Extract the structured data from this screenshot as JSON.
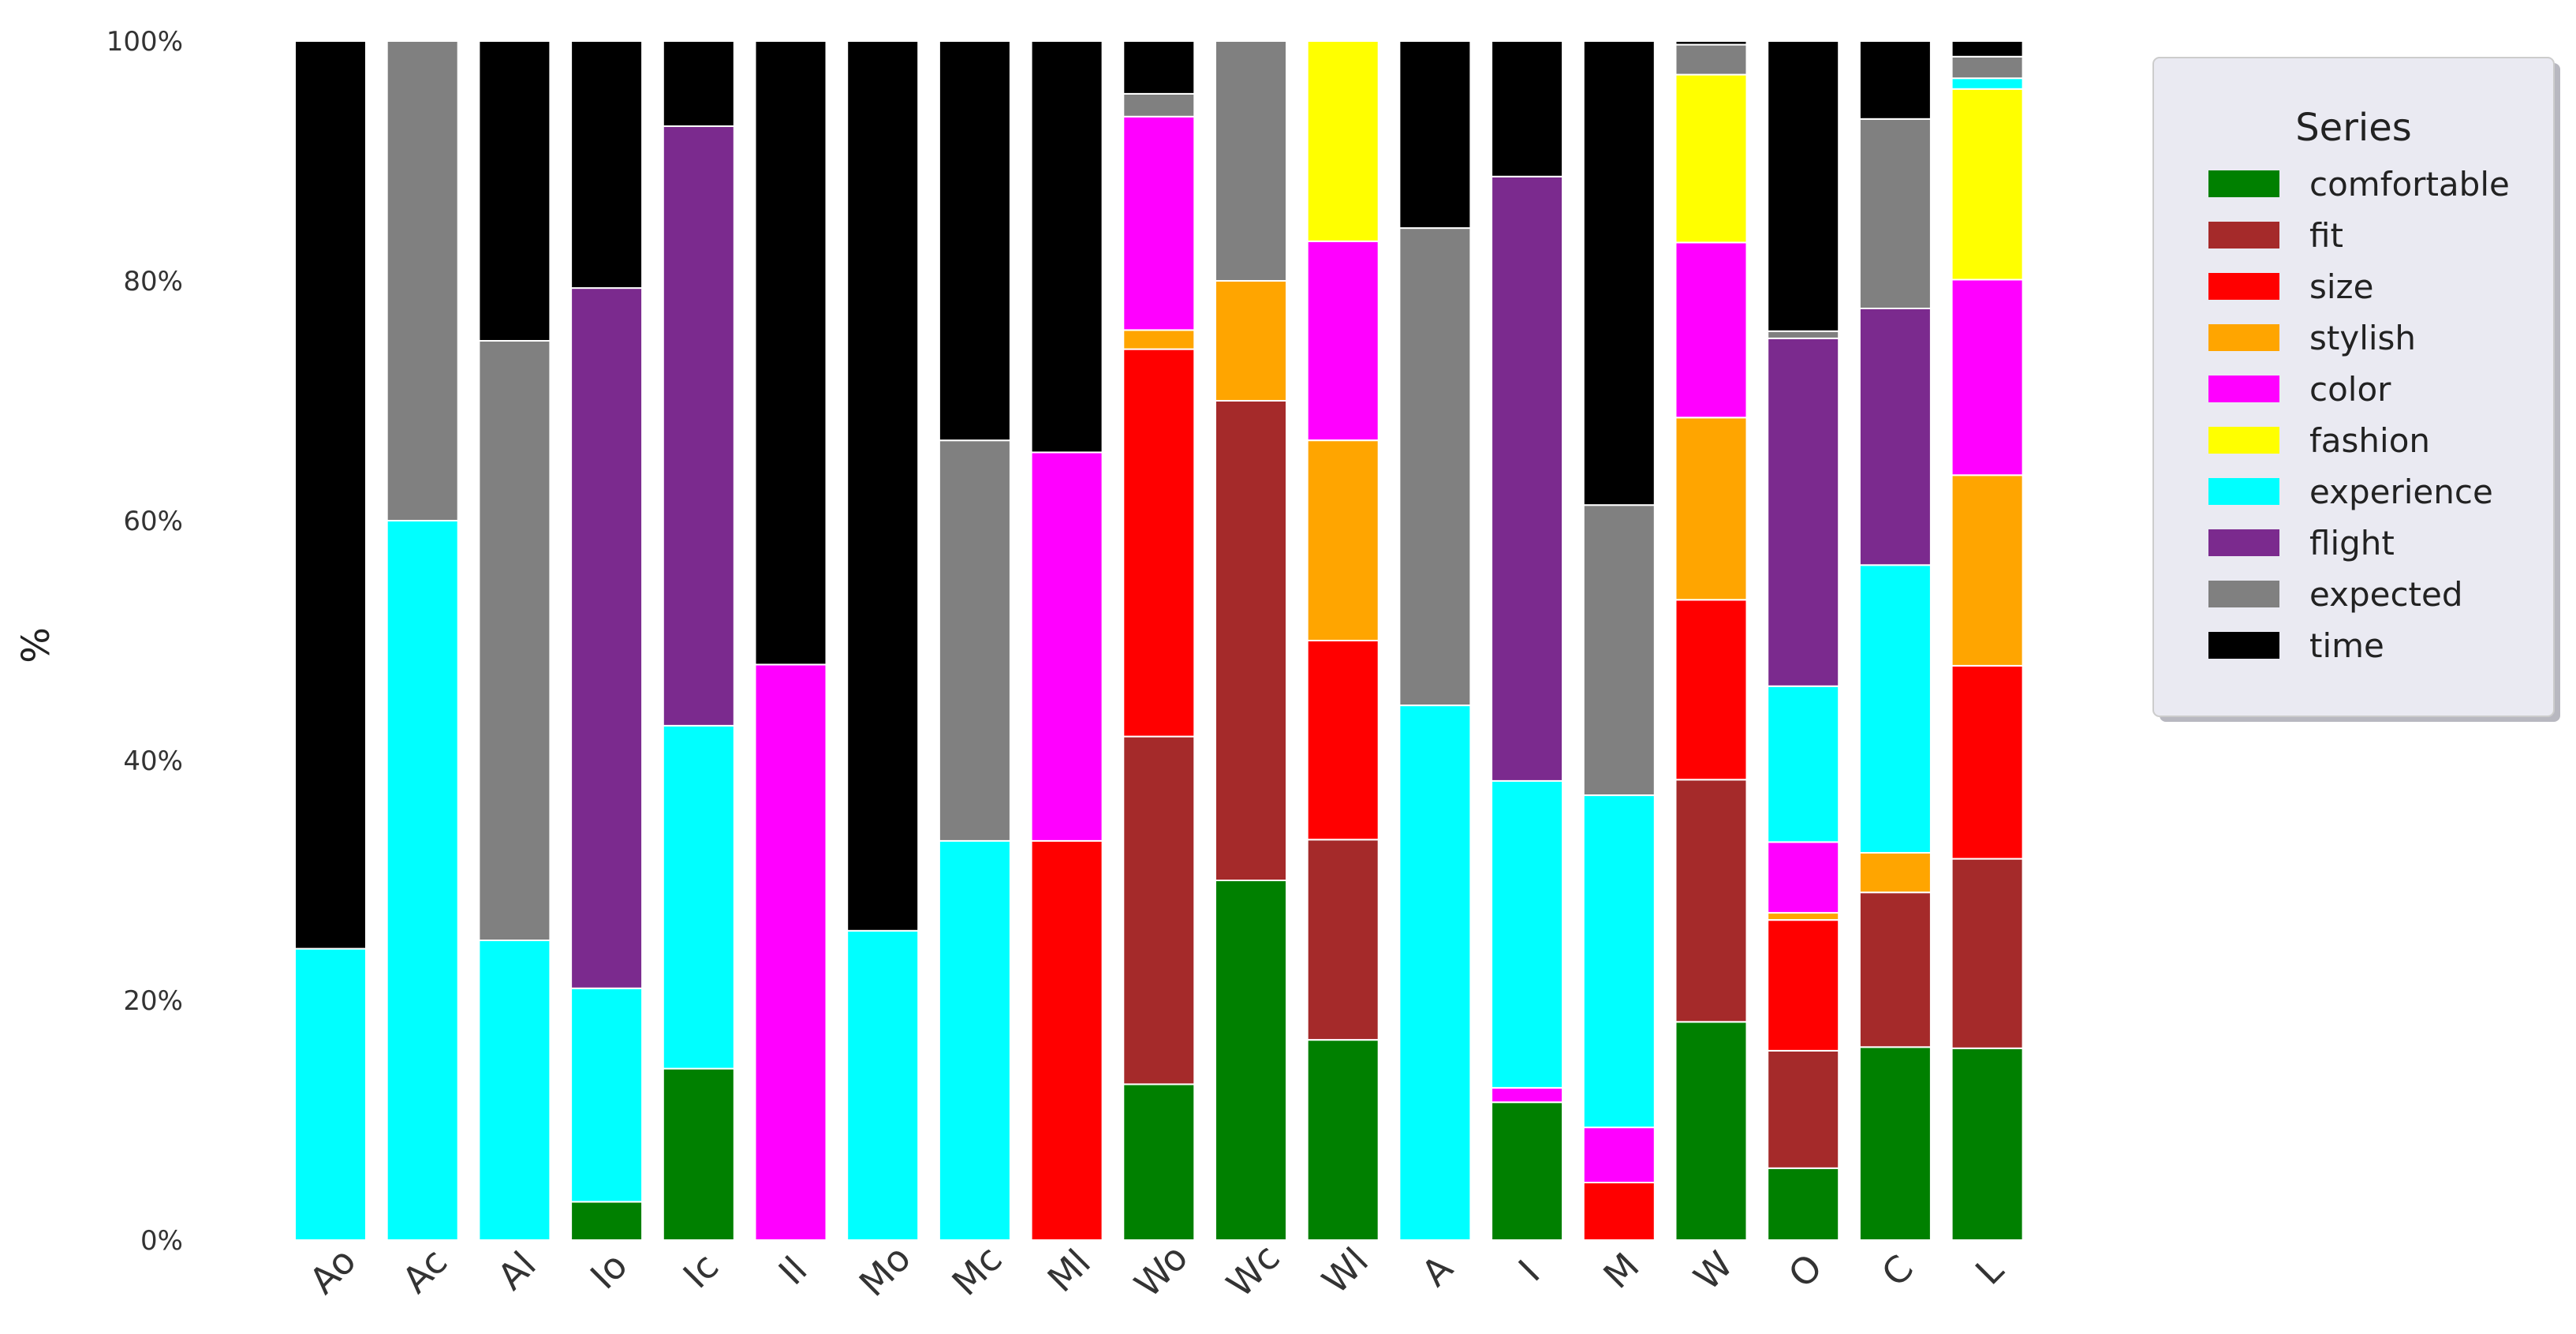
{
  "chart_data": {
    "type": "bar",
    "stacked": true,
    "normalized": true,
    "ylabel": "%",
    "ylim": [
      0,
      100
    ],
    "yticks": [
      "0%",
      "20%",
      "40%",
      "60%",
      "80%",
      "100%"
    ],
    "grid": false,
    "legend": {
      "title": "Series",
      "placement": "right"
    },
    "categories": [
      "Ao",
      "Ac",
      "Al",
      "Io",
      "Ic",
      "Il",
      "Mo",
      "Mc",
      "Ml",
      "Wo",
      "Wc",
      "Wl",
      "A",
      "I",
      "M",
      "W",
      "O",
      "C",
      "L"
    ],
    "series": [
      {
        "name": "comfortable",
        "color": "#008000",
        "values": [
          0,
          0,
          0,
          3.2,
          14.3,
          0,
          0,
          0,
          0,
          13.0,
          30.0,
          16.7,
          0,
          11.5,
          0,
          18.2,
          6.0,
          16.1,
          16.0
        ]
      },
      {
        "name": "fit",
        "color": "#a52a2a",
        "values": [
          0,
          0,
          0,
          0,
          0,
          0,
          0,
          0,
          0,
          29.0,
          40.0,
          16.7,
          0,
          0,
          0,
          20.2,
          9.8,
          12.9,
          15.8
        ]
      },
      {
        "name": "size",
        "color": "#ff0000",
        "values": [
          0,
          0,
          0,
          0,
          0,
          0,
          0,
          0,
          33.3,
          32.3,
          0,
          16.6,
          0,
          0,
          4.8,
          15.0,
          10.9,
          0,
          16.1
        ]
      },
      {
        "name": "stylish",
        "color": "#ffa500",
        "values": [
          0,
          0,
          0,
          0,
          0,
          0,
          0,
          0,
          0,
          1.6,
          10.0,
          16.7,
          0,
          0,
          0,
          15.2,
          0.6,
          3.3,
          15.9
        ]
      },
      {
        "name": "color",
        "color": "#ff00ff",
        "values": [
          0,
          0,
          0,
          0,
          0,
          48.0,
          0,
          0,
          32.4,
          17.8,
          0,
          16.6,
          0,
          1.2,
          4.6,
          14.6,
          5.9,
          0,
          16.3
        ]
      },
      {
        "name": "fashion",
        "color": "#ffff00",
        "values": [
          0,
          0,
          0,
          0,
          0,
          0,
          0,
          0,
          0,
          0,
          0,
          16.7,
          0,
          0,
          0,
          14.0,
          0,
          0,
          15.9
        ]
      },
      {
        "name": "experience",
        "color": "#00ffff",
        "values": [
          24.3,
          60.0,
          25.0,
          17.8,
          28.6,
          0,
          25.8,
          33.3,
          0,
          0,
          0,
          0,
          44.6,
          25.6,
          27.7,
          0,
          13.0,
          24.0,
          0.9
        ]
      },
      {
        "name": "flight",
        "color": "#7b2a8e",
        "values": [
          0,
          0,
          0,
          58.4,
          50.0,
          0,
          0,
          0,
          0,
          0,
          0,
          0,
          0,
          50.4,
          0,
          0,
          29.0,
          21.4,
          0
        ]
      },
      {
        "name": "expected",
        "color": "#808080",
        "values": [
          0,
          40.0,
          50.0,
          0,
          0,
          0,
          0,
          33.4,
          0,
          1.9,
          20.0,
          0,
          39.8,
          0,
          24.2,
          2.5,
          0.6,
          15.8,
          1.8
        ]
      },
      {
        "name": "time",
        "color": "#000000",
        "values": [
          75.7,
          0,
          25.0,
          20.6,
          7.1,
          52.0,
          74.2,
          33.3,
          34.3,
          4.4,
          0,
          0,
          15.6,
          11.3,
          38.7,
          0.3,
          24.2,
          6.5,
          1.3
        ]
      }
    ]
  }
}
